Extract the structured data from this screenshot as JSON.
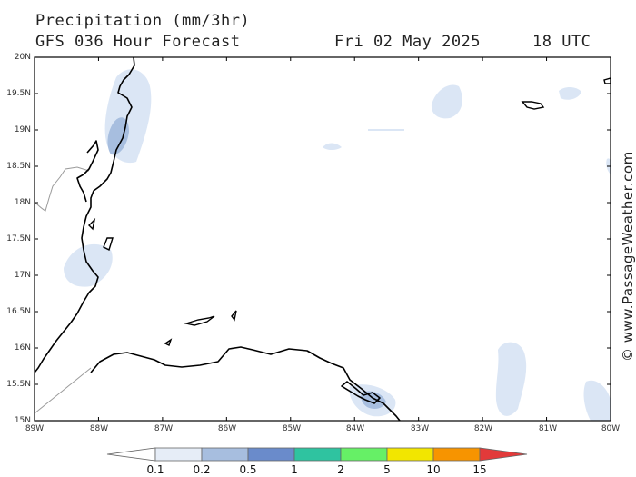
{
  "header": {
    "title": "Precipitation (mm/3hr)",
    "subtitle": "GFS 036 Hour Forecast",
    "valid_date": "Fri 02 May 2025",
    "valid_time": "18 UTC"
  },
  "map": {
    "lat_labels": [
      "20N",
      "19.5N",
      "19N",
      "18.5N",
      "18N",
      "17.5N",
      "17N",
      "16.5N",
      "16N",
      "15.5N",
      "15N"
    ],
    "lon_labels": [
      "89W",
      "88W",
      "87W",
      "86W",
      "85W",
      "84W",
      "83W",
      "82W",
      "81W",
      "80W"
    ],
    "credit": "© www.PassageWeather.com",
    "precip_colors": {
      "light": "#dbe6f5",
      "medium": "#a7bedf",
      "heavy": "#6f8fcb"
    }
  },
  "legend": {
    "levels": [
      "0.1",
      "0.2",
      "0.5",
      "1",
      "2",
      "5",
      "10",
      "15"
    ],
    "colors": [
      "#ffffff",
      "#e6edf7",
      "#a7bedf",
      "#6a8bcb",
      "#2fc3a0",
      "#66f066",
      "#f2e600",
      "#f79400",
      "#e23a3a"
    ]
  }
}
